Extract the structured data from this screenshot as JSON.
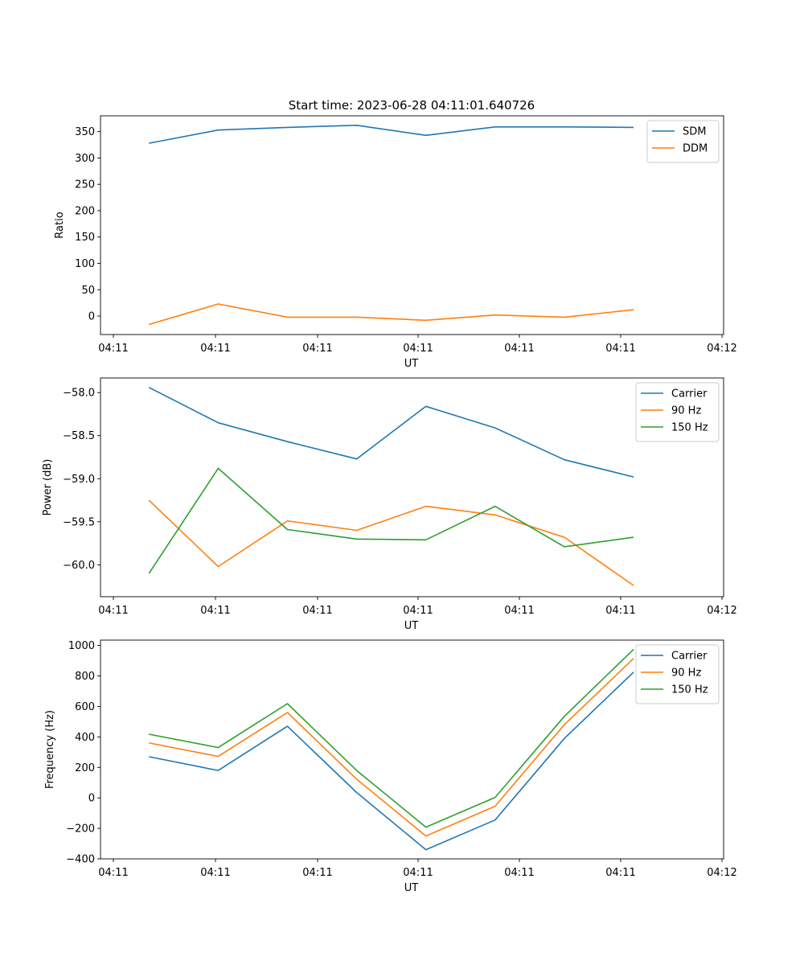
{
  "figure": {
    "title": "Start time: 2023-06-28 04:11:01.640726"
  },
  "chart_data": [
    {
      "type": "line",
      "title": "Start time: 2023-06-28 04:11:01.640726",
      "xlabel": "UT",
      "ylabel": "Ratio",
      "x_tick_labels": [
        "04:11",
        "04:11",
        "04:11",
        "04:11",
        "04:11",
        "04:11",
        "04:11"
      ],
      "x_tick_last_label": "04:12",
      "x": [
        1,
        2,
        3,
        4,
        5,
        6,
        7,
        8
      ],
      "xlim": [
        0.3,
        9.3
      ],
      "ylim": [
        -35,
        380
      ],
      "yticks": [
        0,
        50,
        100,
        150,
        200,
        250,
        300,
        350
      ],
      "legend": "top-right",
      "grid": false,
      "series": [
        {
          "name": "SDM",
          "color": "#1f77b4",
          "values": [
            328,
            353,
            358,
            362,
            343,
            359,
            359,
            358
          ]
        },
        {
          "name": "DDM",
          "color": "#ff7f0e",
          "values": [
            -16,
            23,
            -2,
            -2,
            -8,
            2,
            -2,
            12
          ]
        }
      ]
    },
    {
      "type": "line",
      "xlabel": "UT",
      "ylabel": "Power (dB)",
      "x_tick_labels": [
        "04:11",
        "04:11",
        "04:11",
        "04:11",
        "04:11",
        "04:11",
        "04:11"
      ],
      "x_tick_last_label": "04:12",
      "x": [
        1,
        2,
        3,
        4,
        5,
        6,
        7,
        8
      ],
      "xlim": [
        0.3,
        9.3
      ],
      "ylim": [
        -60.37,
        -57.83
      ],
      "yticks": [
        -60.0,
        -59.5,
        -59.0,
        -58.5,
        -58.0
      ],
      "ytick_labels": [
        "−60.0",
        "−59.5",
        "−59.0",
        "−58.5",
        "−58.0"
      ],
      "legend": "top-right",
      "grid": false,
      "series": [
        {
          "name": "Carrier",
          "color": "#1f77b4",
          "values": [
            -57.94,
            -58.35,
            -58.57,
            -58.77,
            -58.16,
            -58.41,
            -58.78,
            -58.98
          ]
        },
        {
          "name": "90 Hz",
          "color": "#ff7f0e",
          "values": [
            -59.25,
            -60.02,
            -59.49,
            -59.6,
            -59.32,
            -59.42,
            -59.68,
            -60.24
          ]
        },
        {
          "name": "150 Hz",
          "color": "#2ca02c",
          "values": [
            -60.1,
            -58.88,
            -59.59,
            -59.7,
            -59.71,
            -59.32,
            -59.79,
            -59.68
          ]
        }
      ]
    },
    {
      "type": "line",
      "xlabel": "UT",
      "ylabel": "Frequency (Hz)",
      "x_tick_labels": [
        "04:11",
        "04:11",
        "04:11",
        "04:11",
        "04:11",
        "04:11",
        "04:11"
      ],
      "x_tick_last_label": "04:12",
      "x": [
        1,
        2,
        3,
        4,
        5,
        6,
        7,
        8
      ],
      "xlim": [
        0.3,
        9.3
      ],
      "ylim": [
        -400,
        1035
      ],
      "yticks": [
        -400,
        -200,
        0,
        200,
        400,
        600,
        800,
        1000
      ],
      "ytick_labels": [
        "−400",
        "−200",
        "0",
        "200",
        "400",
        "600",
        "800",
        "1000"
      ],
      "legend": "top-right",
      "grid": false,
      "series": [
        {
          "name": "Carrier",
          "color": "#1f77b4",
          "values": [
            270,
            180,
            470,
            35,
            -340,
            -145,
            390,
            825
          ]
        },
        {
          "name": "90 Hz",
          "color": "#ff7f0e",
          "values": [
            360,
            272,
            560,
            123,
            -250,
            -55,
            480,
            915
          ]
        },
        {
          "name": "150 Hz",
          "color": "#2ca02c",
          "values": [
            418,
            330,
            618,
            180,
            -192,
            3,
            535,
            975
          ]
        }
      ]
    }
  ]
}
